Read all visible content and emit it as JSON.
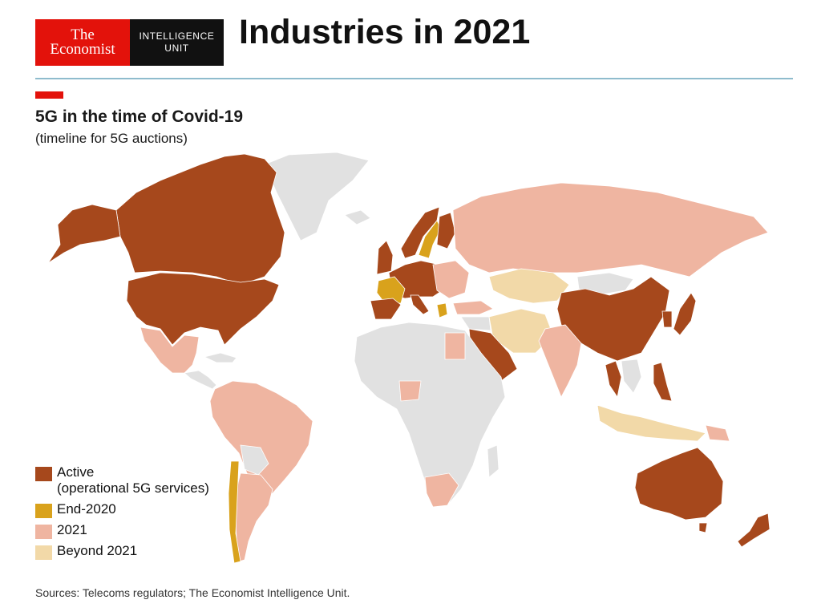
{
  "header": {
    "logo_line1": "The",
    "logo_line2": "Economist",
    "logo_unit_line1": "INTELLIGENCE",
    "logo_unit_line2": "UNIT",
    "title": "Industries in 2021"
  },
  "map": {
    "title": "5G in the time of Covid-19",
    "subtitle": "(timeline for 5G auctions)",
    "colors": {
      "active": "#a6481c",
      "end_2020": "#d9a21c",
      "year_2021": "#efb5a1",
      "beyond_2021": "#f2d9a8",
      "no_data": "#e1e1e1",
      "brand_red": "#e3120b",
      "rule": "#8fbccd"
    },
    "legend": [
      {
        "label": "Active",
        "sublabel": "(operational 5G services)",
        "color_key": "active"
      },
      {
        "label": "End-2020",
        "color_key": "end_2020"
      },
      {
        "label": "2021",
        "color_key": "year_2021"
      },
      {
        "label": "Beyond 2021",
        "color_key": "beyond_2021"
      }
    ]
  },
  "source": "Sources: Telecoms regulators; The Economist Intelligence Unit."
}
